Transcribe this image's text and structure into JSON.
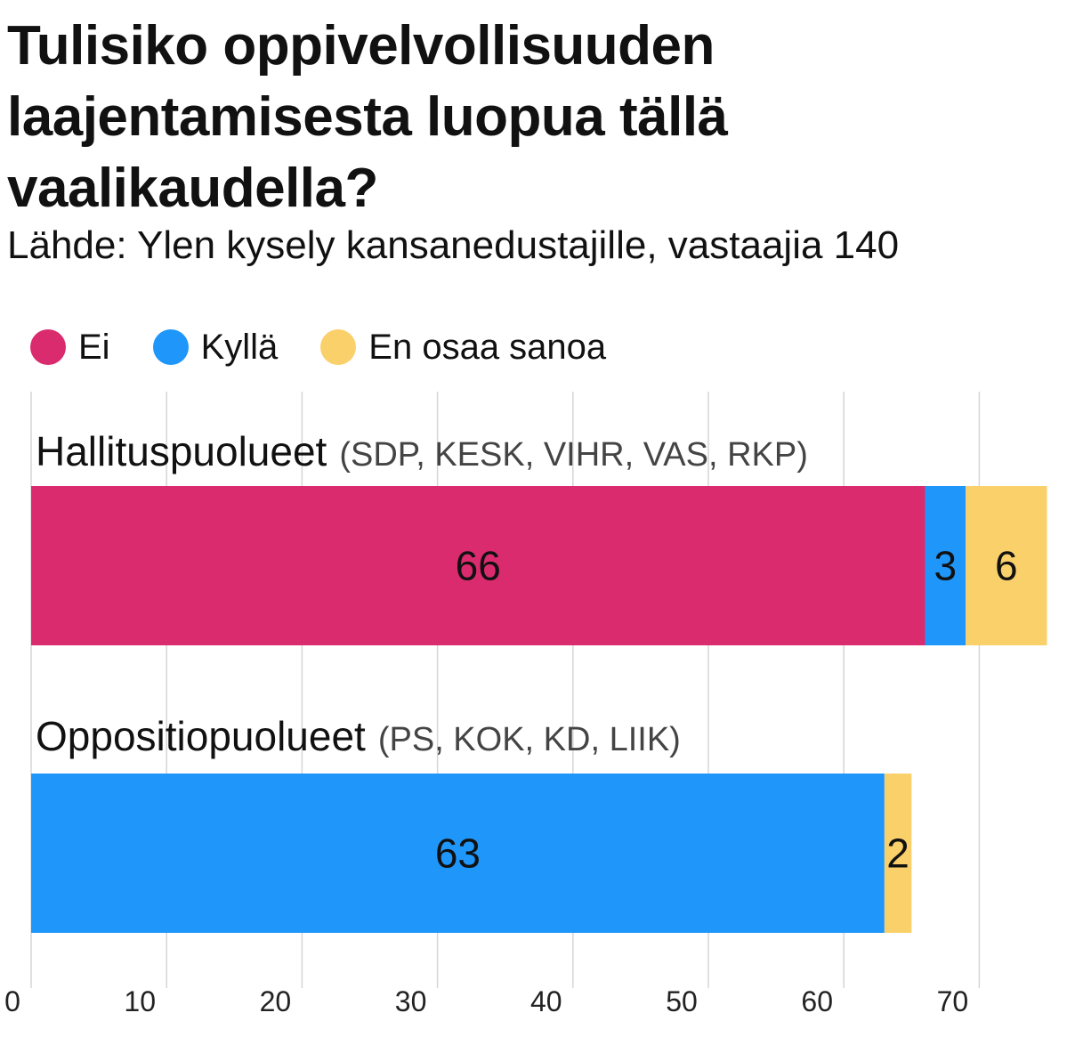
{
  "title": "Tulisiko oppivelvollisuuden laajentamisesta luopua tällä vaalikaudella?",
  "subtitle": "Lähde: Ylen kysely kansanedustajille, vastaajia 140",
  "legend": [
    {
      "label": "Ei",
      "color": "#db2b6f"
    },
    {
      "label": "Kyllä",
      "color": "#1f96fa"
    },
    {
      "label": "En osaa sanoa",
      "color": "#fad06b"
    }
  ],
  "chart_data": {
    "type": "bar",
    "orientation": "horizontal",
    "stacked": true,
    "categories": [
      "Hallituspuolueet",
      "Oppositiopuolueet"
    ],
    "category_details": [
      "(SDP, KESK, VIHR, VAS, RKP)",
      "(PS, KOK, KD, LIIK)"
    ],
    "series": [
      {
        "name": "Ei",
        "color": "#db2b6f",
        "values": [
          66,
          0
        ]
      },
      {
        "name": "Kyllä",
        "color": "#1f96fa",
        "values": [
          3,
          63
        ]
      },
      {
        "name": "En osaa sanoa",
        "color": "#fad06b",
        "values": [
          6,
          2
        ]
      }
    ],
    "xlim": [
      0,
      75
    ],
    "xticks": [
      0,
      10,
      20,
      30,
      40,
      50,
      60,
      70
    ],
    "grid": true,
    "legend_position": "top-left"
  }
}
